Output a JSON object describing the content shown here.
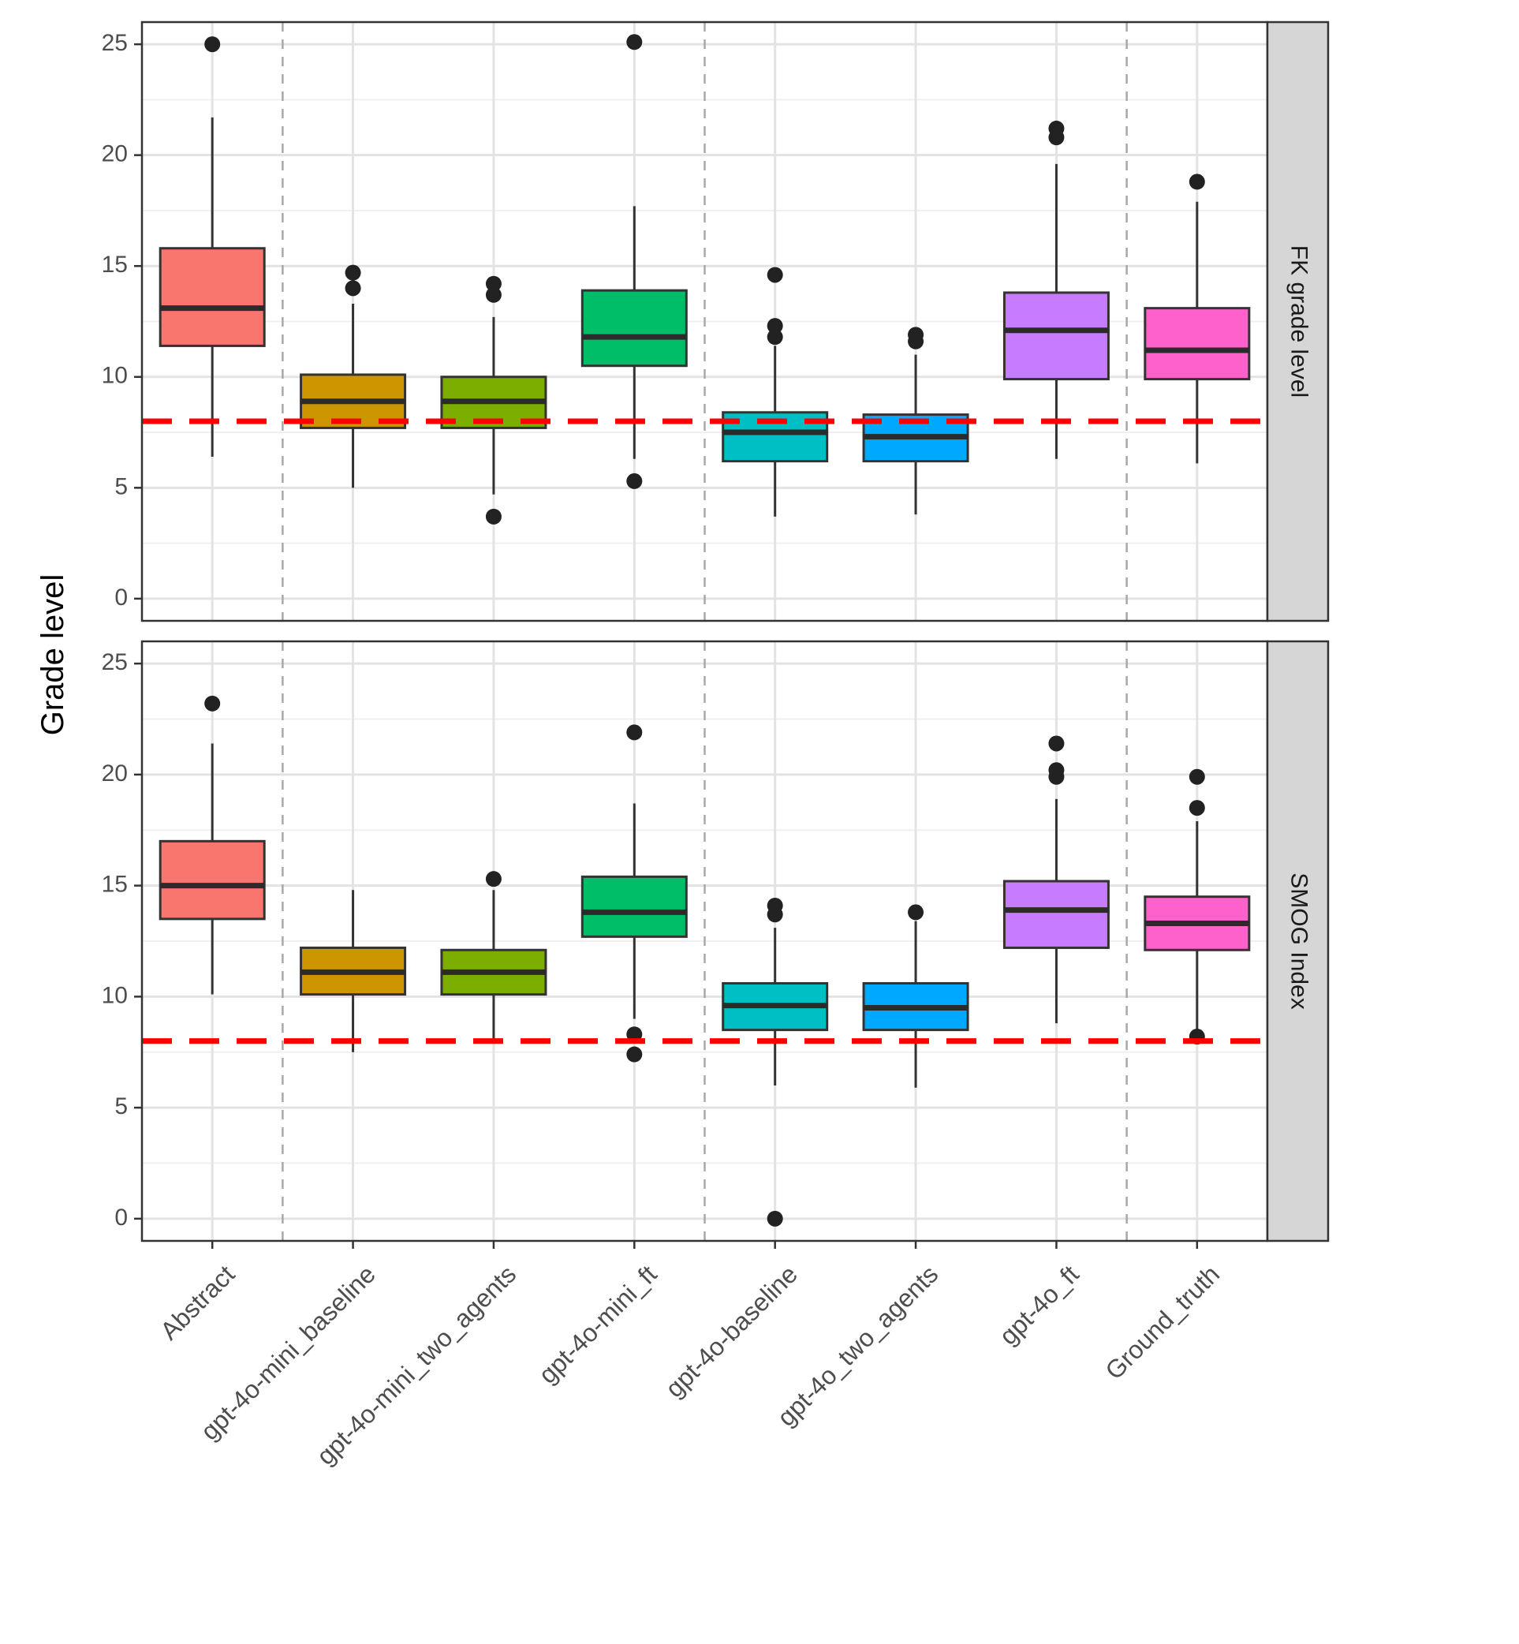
{
  "chart_data": {
    "type": "boxplot",
    "ylabel": "Grade level",
    "xlabel": "",
    "ylim": [
      -1,
      26
    ],
    "yticks": [
      0,
      5,
      10,
      15,
      20,
      25
    ],
    "grid": true,
    "reference_line": {
      "value": 8,
      "color": "#ff0000",
      "style": "dashed"
    },
    "group_separators_after": [
      "Abstract",
      "gpt-4o-mini_ft",
      "gpt-4o_ft"
    ],
    "categories": [
      "Abstract",
      "gpt-4o-mini_baseline",
      "gpt-4o-mini_two_agents",
      "gpt-4o-mini_ft",
      "gpt-4o-baseline",
      "gpt-4o_two_agents",
      "gpt-4o_ft",
      "Ground_truth"
    ],
    "colors": [
      "#F8766D",
      "#CD9600",
      "#7CAE00",
      "#00BE67",
      "#00BFC4",
      "#00A9FF",
      "#C77CFF",
      "#FF61CC"
    ],
    "panels": [
      {
        "strip_label": "FK grade level",
        "boxes": [
          {
            "q1": 11.4,
            "median": 13.1,
            "q3": 15.8,
            "lower": 6.4,
            "upper": 21.7,
            "outliers": [
              25.0
            ]
          },
          {
            "q1": 7.7,
            "median": 8.9,
            "q3": 10.1,
            "lower": 5.0,
            "upper": 13.3,
            "outliers": [
              14.0,
              14.7
            ]
          },
          {
            "q1": 7.7,
            "median": 8.9,
            "q3": 10.0,
            "lower": 4.7,
            "upper": 12.7,
            "outliers": [
              3.7,
              13.7,
              14.2
            ]
          },
          {
            "q1": 10.5,
            "median": 11.8,
            "q3": 13.9,
            "lower": 6.3,
            "upper": 17.7,
            "outliers": [
              5.3,
              25.1
            ]
          },
          {
            "q1": 6.2,
            "median": 7.5,
            "q3": 8.4,
            "lower": 3.7,
            "upper": 11.4,
            "outliers": [
              11.8,
              12.3,
              14.6
            ]
          },
          {
            "q1": 6.2,
            "median": 7.3,
            "q3": 8.3,
            "lower": 3.8,
            "upper": 11.0,
            "outliers": [
              11.6,
              11.9
            ]
          },
          {
            "q1": 9.9,
            "median": 12.1,
            "q3": 13.8,
            "lower": 6.3,
            "upper": 19.6,
            "outliers": [
              20.8,
              21.2
            ]
          },
          {
            "q1": 9.9,
            "median": 11.2,
            "q3": 13.1,
            "lower": 6.1,
            "upper": 17.9,
            "outliers": [
              18.8
            ]
          }
        ]
      },
      {
        "strip_label": "SMOG Index",
        "boxes": [
          {
            "q1": 13.5,
            "median": 15.0,
            "q3": 17.0,
            "lower": 10.1,
            "upper": 21.4,
            "outliers": [
              23.2
            ]
          },
          {
            "q1": 10.1,
            "median": 11.1,
            "q3": 12.2,
            "lower": 7.5,
            "upper": 14.8,
            "outliers": []
          },
          {
            "q1": 10.1,
            "median": 11.1,
            "q3": 12.1,
            "lower": 8.0,
            "upper": 14.8,
            "outliers": [
              15.3
            ]
          },
          {
            "q1": 12.7,
            "median": 13.8,
            "q3": 15.4,
            "lower": 9.0,
            "upper": 18.7,
            "outliers": [
              7.4,
              8.3,
              21.9
            ]
          },
          {
            "q1": 8.5,
            "median": 9.6,
            "q3": 10.6,
            "lower": 6.0,
            "upper": 13.1,
            "outliers": [
              0.0,
              13.7,
              14.1
            ]
          },
          {
            "q1": 8.5,
            "median": 9.5,
            "q3": 10.6,
            "lower": 5.9,
            "upper": 13.4,
            "outliers": [
              13.8
            ]
          },
          {
            "q1": 12.2,
            "median": 13.9,
            "q3": 15.2,
            "lower": 8.8,
            "upper": 18.9,
            "outliers": [
              19.9,
              20.2,
              21.4
            ]
          },
          {
            "q1": 12.1,
            "median": 13.3,
            "q3": 14.5,
            "lower": 8.3,
            "upper": 17.9,
            "outliers": [
              8.2,
              18.5,
              19.9
            ]
          }
        ]
      }
    ]
  }
}
